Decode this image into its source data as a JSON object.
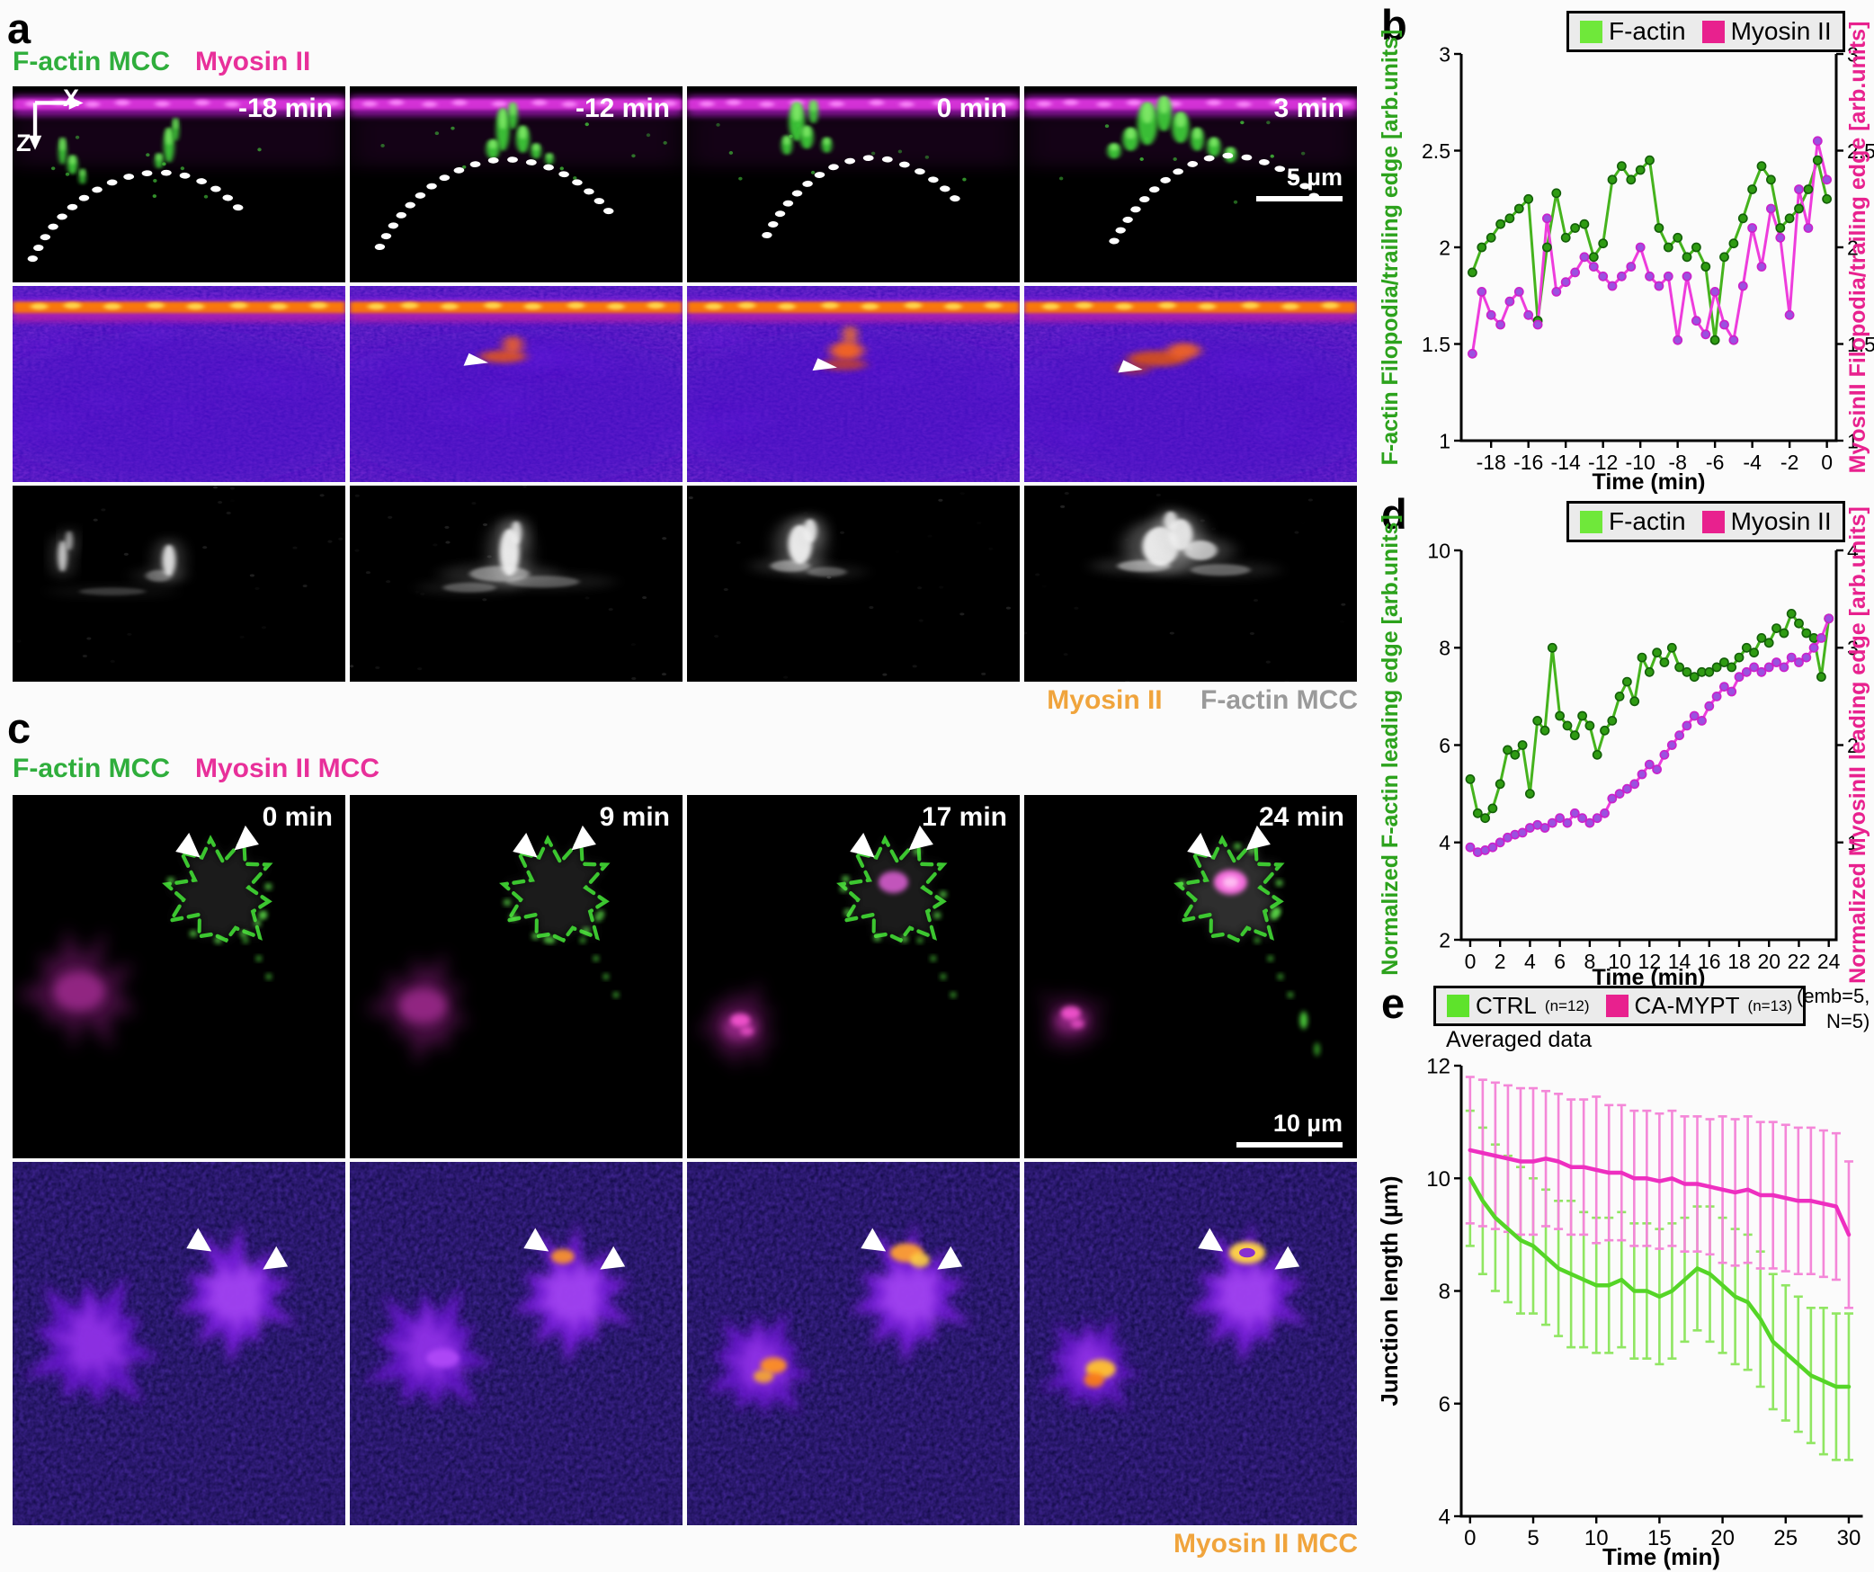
{
  "figure": {
    "panel_a": {
      "label": "a",
      "channels": {
        "factin": "F-actin MCC",
        "myosin": "Myosin II"
      },
      "axes": {
        "x": "X",
        "z": "Z"
      },
      "times": [
        "-18 min",
        "-12 min",
        "0 min",
        "3 min"
      ],
      "scalebar": "5 µm",
      "footer": {
        "myosin": "Myosin II",
        "factin": "F-actin MCC"
      }
    },
    "panel_b": {
      "label": "b"
    },
    "panel_c": {
      "label": "c",
      "channels": {
        "factin": "F-actin MCC",
        "myosin": "Myosin II MCC"
      },
      "times": [
        "0 min",
        "9 min",
        "17 min",
        "24 min"
      ],
      "scalebar": "10 µm",
      "footer": {
        "myosin": "Myosin II MCC"
      }
    },
    "panel_d": {
      "label": "d"
    },
    "panel_e": {
      "label": "e",
      "subtitle": "Averaged data",
      "annotation": [
        "(emb=5,",
        "N=5)"
      ]
    }
  },
  "chart_data": [
    {
      "id": "b",
      "type": "line",
      "xlabel": "Time (min)",
      "xlim": [
        -19.6,
        0.5
      ],
      "x_ticks": [
        -18,
        -16,
        -14,
        -12,
        -10,
        -8,
        -6,
        -4,
        -2,
        0
      ],
      "left_axis": {
        "label": "F-actin Filopodia/trailing edge  [arb.units]",
        "lim": [
          1,
          3
        ],
        "ticks": [
          1,
          1.5,
          2,
          2.5,
          3
        ],
        "color": "#2ca21c"
      },
      "right_axis": {
        "label": "MyosinII Filopodia/trailing edge  [arb.units]",
        "lim": [
          1,
          3
        ],
        "ticks": [
          1,
          1.5,
          2,
          2.5,
          3
        ],
        "color": "#e8218e"
      },
      "legend": [
        {
          "label": "F-actin",
          "swatch": "#6fe83a"
        },
        {
          "label": "Myosin II",
          "swatch": "#e8218e"
        }
      ],
      "series": [
        {
          "name": "F-actin",
          "axis": "left",
          "line": "#45b31d",
          "marker": "#2f9b13",
          "marker_edge": "#135f08",
          "x": [
            -19,
            -18.5,
            -18,
            -17.5,
            -17,
            -16.5,
            -16,
            -15.5,
            -15,
            -14.5,
            -14,
            -13.5,
            -13,
            -12.5,
            -12,
            -11.5,
            -11,
            -10.5,
            -10,
            -9.5,
            -9,
            -8.5,
            -8,
            -7.5,
            -7,
            -6.5,
            -6,
            -5.5,
            -5,
            -4.5,
            -4,
            -3.5,
            -3,
            -2.5,
            -2,
            -1.5,
            -1,
            -0.5,
            0
          ],
          "values": [
            1.87,
            2.0,
            2.05,
            2.12,
            2.15,
            2.2,
            2.25,
            1.62,
            2.0,
            2.28,
            2.05,
            2.1,
            2.12,
            1.95,
            2.02,
            2.35,
            2.42,
            2.35,
            2.4,
            2.45,
            2.1,
            2.0,
            2.05,
            1.95,
            2.0,
            1.9,
            1.52,
            1.95,
            2.02,
            2.15,
            2.3,
            2.42,
            2.35,
            2.1,
            2.15,
            2.2,
            2.3,
            2.45,
            2.25
          ]
        },
        {
          "name": "Myosin II",
          "axis": "right",
          "line": "#ee3cdc",
          "marker": "#9b51df",
          "marker_edge": "#cb21cb",
          "x": [
            -19,
            -18.5,
            -18,
            -17.5,
            -17,
            -16.5,
            -16,
            -15.5,
            -15,
            -14.5,
            -14,
            -13.5,
            -13,
            -12.5,
            -12,
            -11.5,
            -11,
            -10.5,
            -10,
            -9.5,
            -9,
            -8.5,
            -8,
            -7.5,
            -7,
            -6.5,
            -6,
            -5.5,
            -5,
            -4.5,
            -4,
            -3.5,
            -3,
            -2.5,
            -2,
            -1.5,
            -1,
            -0.5,
            0
          ],
          "values": [
            1.45,
            1.77,
            1.65,
            1.6,
            1.72,
            1.77,
            1.65,
            1.6,
            2.15,
            1.77,
            1.82,
            1.87,
            1.95,
            1.9,
            1.85,
            1.8,
            1.85,
            1.9,
            2.0,
            1.85,
            1.8,
            1.85,
            1.52,
            1.85,
            1.62,
            1.55,
            1.77,
            1.6,
            1.52,
            1.8,
            2.1,
            1.9,
            2.2,
            2.05,
            1.65,
            2.3,
            2.1,
            2.55,
            2.35
          ]
        }
      ]
    },
    {
      "id": "d",
      "type": "line",
      "xlabel": "Time (min)",
      "xlim": [
        -0.6,
        24.5
      ],
      "x_ticks": [
        0,
        2,
        4,
        6,
        8,
        10,
        12,
        14,
        16,
        18,
        20,
        22,
        24
      ],
      "left_axis": {
        "label": "Normalized F-actin leading edge  [arb.units]",
        "lim": [
          2,
          10
        ],
        "ticks": [
          2,
          4,
          6,
          8,
          10
        ],
        "color": "#2ca21c"
      },
      "right_axis": {
        "label": "Normalized MyosinII leading edge  [arb.units]",
        "lim": [
          0,
          4
        ],
        "ticks": [
          1,
          2,
          3,
          4
        ],
        "color": "#e8218e"
      },
      "legend": [
        {
          "label": "F-actin",
          "swatch": "#6fe83a"
        },
        {
          "label": "Myosin II",
          "swatch": "#e8218e"
        }
      ],
      "series": [
        {
          "name": "F-actin",
          "axis": "left",
          "line": "#45b31d",
          "marker": "#2f9b13",
          "marker_edge": "#135f08",
          "x": [
            0,
            0.5,
            1,
            1.5,
            2,
            2.5,
            3,
            3.5,
            4,
            4.5,
            5,
            5.5,
            6,
            6.5,
            7,
            7.5,
            8,
            8.5,
            9,
            9.5,
            10,
            10.5,
            11,
            11.5,
            12,
            12.5,
            13,
            13.5,
            14,
            14.5,
            15,
            15.5,
            16,
            16.5,
            17,
            17.5,
            18,
            18.5,
            19,
            19.5,
            20,
            20.5,
            21,
            21.5,
            22,
            22.5,
            23,
            23.5,
            24
          ],
          "values": [
            5.3,
            4.6,
            4.5,
            4.7,
            5.2,
            5.9,
            5.8,
            6.0,
            5.0,
            6.5,
            6.3,
            8.0,
            6.6,
            6.4,
            6.2,
            6.6,
            6.4,
            5.8,
            6.3,
            6.5,
            7.0,
            7.3,
            6.9,
            7.8,
            7.5,
            7.9,
            7.7,
            8.0,
            7.6,
            7.5,
            7.4,
            7.5,
            7.5,
            7.6,
            7.7,
            7.6,
            7.8,
            8.0,
            7.9,
            8.2,
            8.1,
            8.4,
            8.3,
            8.7,
            8.5,
            8.3,
            8.2,
            7.4,
            8.6
          ]
        },
        {
          "name": "Myosin II",
          "axis": "right",
          "line": "#ee3cdc",
          "marker": "#9b51df",
          "marker_edge": "#cb21cb",
          "x": [
            0,
            0.5,
            1,
            1.5,
            2,
            2.5,
            3,
            3.5,
            4,
            4.5,
            5,
            5.5,
            6,
            6.5,
            7,
            7.5,
            8,
            8.5,
            9,
            9.5,
            10,
            10.5,
            11,
            11.5,
            12,
            12.5,
            13,
            13.5,
            14,
            14.5,
            15,
            15.5,
            16,
            16.5,
            17,
            17.5,
            18,
            18.5,
            19,
            19.5,
            20,
            20.5,
            21,
            21.5,
            22,
            22.5,
            23,
            23.5,
            24
          ],
          "values": [
            0.95,
            0.9,
            0.92,
            0.95,
            1.0,
            1.05,
            1.08,
            1.1,
            1.15,
            1.18,
            1.15,
            1.2,
            1.25,
            1.2,
            1.3,
            1.25,
            1.2,
            1.25,
            1.3,
            1.45,
            1.5,
            1.55,
            1.6,
            1.7,
            1.8,
            1.75,
            1.9,
            2.0,
            2.1,
            2.2,
            2.3,
            2.25,
            2.4,
            2.5,
            2.6,
            2.55,
            2.7,
            2.75,
            2.8,
            2.75,
            2.8,
            2.85,
            2.8,
            2.9,
            2.85,
            2.9,
            3.0,
            3.1,
            3.3
          ]
        }
      ]
    },
    {
      "id": "e",
      "type": "line-errorbar",
      "xlabel": "Time (min)",
      "ylabel": "Junction length (µm)",
      "xlim": [
        -0.7,
        31
      ],
      "x_ticks": [
        0,
        5,
        10,
        15,
        20,
        25,
        30
      ],
      "ylim": [
        4,
        12
      ],
      "y_ticks": [
        4,
        6,
        8,
        10,
        12
      ],
      "legend": [
        {
          "label": "CTRL",
          "sub": "(n=12)",
          "swatch": "#5ee32b"
        },
        {
          "label": "CA-MYPT",
          "sub": "(n=13)",
          "swatch": "#e8218e"
        }
      ],
      "series": [
        {
          "name": "CTRL",
          "line": "#55d527",
          "err_color": "#90e662",
          "x": [
            0,
            1,
            2,
            3,
            4,
            5,
            6,
            7,
            8,
            9,
            10,
            11,
            12,
            13,
            14,
            15,
            16,
            17,
            18,
            19,
            20,
            21,
            22,
            23,
            24,
            25,
            26,
            27,
            28,
            29,
            30
          ],
          "values": [
            10.0,
            9.6,
            9.3,
            9.1,
            8.9,
            8.8,
            8.6,
            8.4,
            8.3,
            8.2,
            8.1,
            8.1,
            8.2,
            8.0,
            8.0,
            7.9,
            8.0,
            8.2,
            8.4,
            8.3,
            8.1,
            7.9,
            7.8,
            7.5,
            7.1,
            6.9,
            6.7,
            6.5,
            6.4,
            6.3,
            6.3
          ],
          "errors": [
            1.2,
            1.3,
            1.3,
            1.3,
            1.3,
            1.2,
            1.2,
            1.2,
            1.3,
            1.2,
            1.2,
            1.2,
            1.2,
            1.2,
            1.2,
            1.2,
            1.2,
            1.1,
            1.1,
            1.2,
            1.2,
            1.2,
            1.2,
            1.2,
            1.2,
            1.2,
            1.2,
            1.2,
            1.3,
            1.3,
            1.3
          ]
        },
        {
          "name": "CA-MYPT",
          "line": "#ee2fc0",
          "err_color": "#f487d8",
          "x": [
            0,
            1,
            2,
            3,
            4,
            5,
            6,
            7,
            8,
            9,
            10,
            11,
            12,
            13,
            14,
            15,
            16,
            17,
            18,
            19,
            20,
            21,
            22,
            23,
            24,
            25,
            26,
            27,
            28,
            29,
            30
          ],
          "values": [
            10.5,
            10.45,
            10.4,
            10.35,
            10.3,
            10.3,
            10.35,
            10.3,
            10.2,
            10.2,
            10.15,
            10.1,
            10.1,
            10.0,
            10.0,
            9.95,
            10.0,
            9.9,
            9.9,
            9.85,
            9.8,
            9.75,
            9.8,
            9.7,
            9.7,
            9.65,
            9.6,
            9.6,
            9.55,
            9.5,
            9.0
          ],
          "errors": [
            1.3,
            1.3,
            1.3,
            1.3,
            1.3,
            1.3,
            1.2,
            1.2,
            1.2,
            1.2,
            1.3,
            1.2,
            1.2,
            1.2,
            1.2,
            1.2,
            1.2,
            1.2,
            1.2,
            1.2,
            1.3,
            1.3,
            1.3,
            1.3,
            1.3,
            1.3,
            1.3,
            1.3,
            1.3,
            1.3,
            1.3
          ]
        }
      ]
    }
  ]
}
